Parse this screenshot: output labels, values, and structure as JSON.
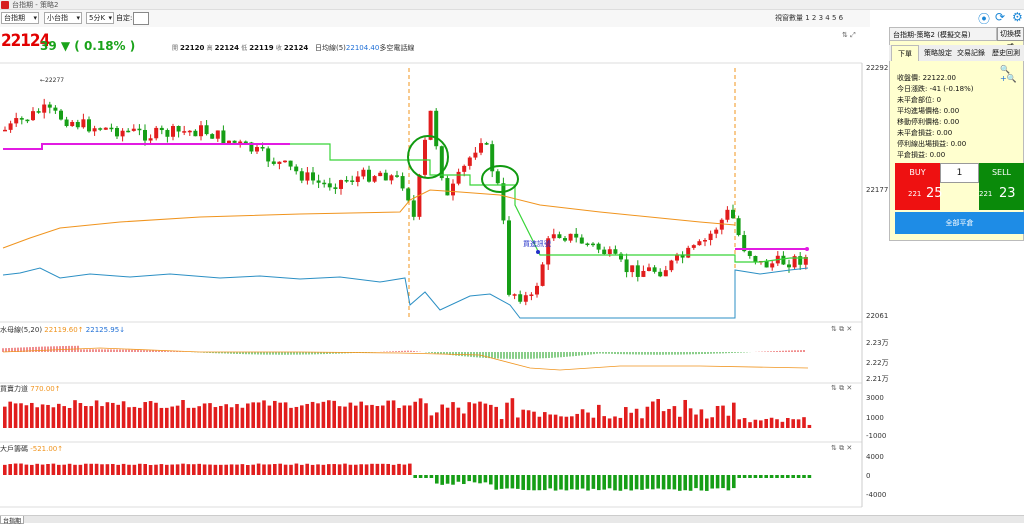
{
  "window": {
    "title": "台指期 - 策略2"
  },
  "toolbar": {
    "symbol": "台指期",
    "contract": "小台指",
    "period": "5分K",
    "custom_label": "自定:",
    "screen_count_label": "視窗數量",
    "screen_numbers": "1 2 3 4 5 6"
  },
  "quote": {
    "last": "22124",
    "change": "39 ▼ ( 0.18% )",
    "open_label": "開",
    "open": "22120",
    "high_label": "高",
    "high": "22124",
    "low_label": "低",
    "low": "22119",
    "close_label": "收",
    "close": "22124",
    "ma_label": "日均線(5)",
    "ma_value": "22104.40",
    "ma_note": "多空電話線"
  },
  "main_axis": {
    "top": "22292",
    "mid": "22177",
    "bottom": "22061"
  },
  "annotation": {
    "prev_high": "←22277",
    "signal_label": "買進訊號"
  },
  "sub1": {
    "title": "水母線(5,20)",
    "v1": "22119.60↑",
    "v2": "22125.95↓",
    "axis": [
      "2.23万",
      "2.22万",
      "2.21万"
    ]
  },
  "sub2": {
    "title": "買賣力道",
    "v": "770.00↑",
    "axis": [
      "3000",
      "1000",
      "-1000"
    ]
  },
  "sub3": {
    "title": "大戶籌碼",
    "v": "-521.00↑",
    "axis": [
      "4000",
      "0",
      "-4000"
    ]
  },
  "panel": {
    "title": "台指期-策略2 (模擬交易)",
    "switch_label": "切換模式",
    "tabs": [
      "下單",
      "策略設定",
      "交易記錄",
      "歷史回測"
    ],
    "info": [
      "收盤價: 22122.00",
      "今日漲跌: -41 (-0.18%)",
      "未平倉部位: 0",
      "平均進場價格: 0.00",
      "移動停利價格: 0.00",
      "未平倉損益: 0.00",
      "停利線出場損益: 0.00",
      "平倉損益: 0.00"
    ],
    "buy_label": "BUY",
    "sell_label": "SELL",
    "qty": "1",
    "buy_small": "221",
    "buy_big": "25",
    "sell_small": "221",
    "sell_big": "23",
    "flat_label": "全部平倉"
  },
  "bottom": {
    "tab": "台指期"
  },
  "colors": {
    "up": "#e11d1d",
    "down": "#169e16",
    "magenta": "#e21be2",
    "green_line": "#38d438",
    "orange": "#f0941e",
    "blue": "#2b8fc4"
  }
}
